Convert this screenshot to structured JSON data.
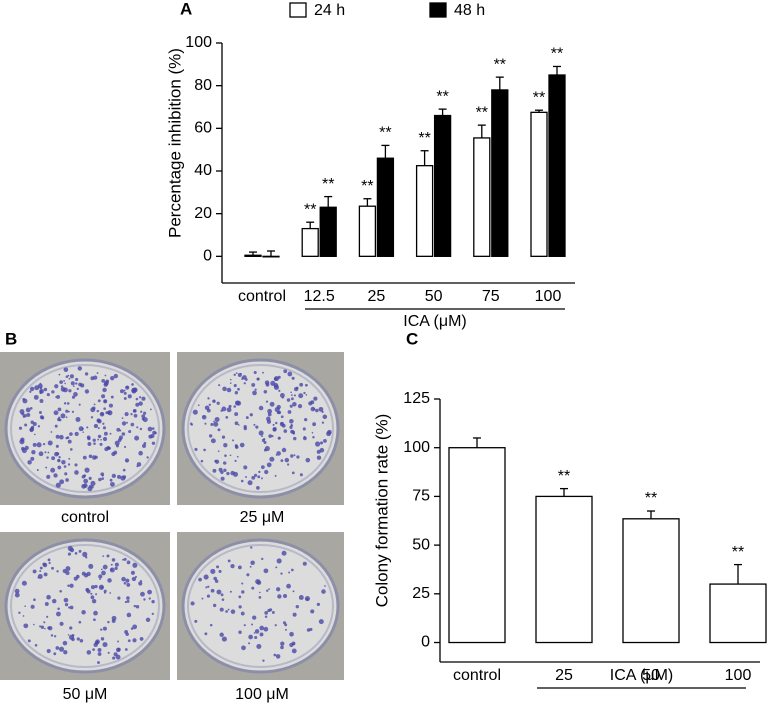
{
  "chart_data": [
    {
      "type": "bar",
      "label": "A",
      "y_label": "Percentage inhibition (%)",
      "categories": [
        "control",
        "12.5",
        "25",
        "50",
        "75",
        "100"
      ],
      "group_label": "ICA  (μM)",
      "series": [
        {
          "name": "24 h",
          "color": "#ffffff",
          "values": [
            0.5,
            13,
            23.5,
            42.5,
            55.5,
            67.5
          ],
          "errors": [
            1.5,
            3,
            3.5,
            7,
            6,
            1
          ],
          "significance": [
            null,
            "**",
            "**",
            "**",
            "**",
            "**"
          ]
        },
        {
          "name": "48 h",
          "color": "#000000",
          "values": [
            0,
            23,
            46,
            66,
            78,
            85
          ],
          "errors": [
            2.5,
            5,
            6,
            3,
            6,
            4
          ],
          "significance": [
            null,
            "**",
            "**",
            "**",
            "**",
            "**"
          ]
        }
      ],
      "ylim": [
        -12.5,
        100
      ],
      "yticks": [
        0,
        20,
        40,
        60,
        80,
        100
      ]
    },
    {
      "type": "bar",
      "label": "C",
      "y_label": "Colony formation rate (%)",
      "categories": [
        "control",
        "25",
        "50",
        "100"
      ],
      "group_label": "ICA (μM)",
      "series": [
        {
          "color": "#ffffff",
          "values": [
            100,
            75,
            63.5,
            30
          ],
          "errors": [
            5,
            4,
            4,
            10
          ],
          "significance": [
            null,
            "**",
            "**",
            "**"
          ]
        }
      ],
      "ylim": [
        -10,
        125
      ],
      "yticks": [
        0,
        25,
        50,
        75,
        100,
        125
      ]
    }
  ],
  "panel_b": {
    "label": "B",
    "captions": [
      "control",
      "25 μM",
      "50 μM",
      "100 μM"
    ]
  }
}
